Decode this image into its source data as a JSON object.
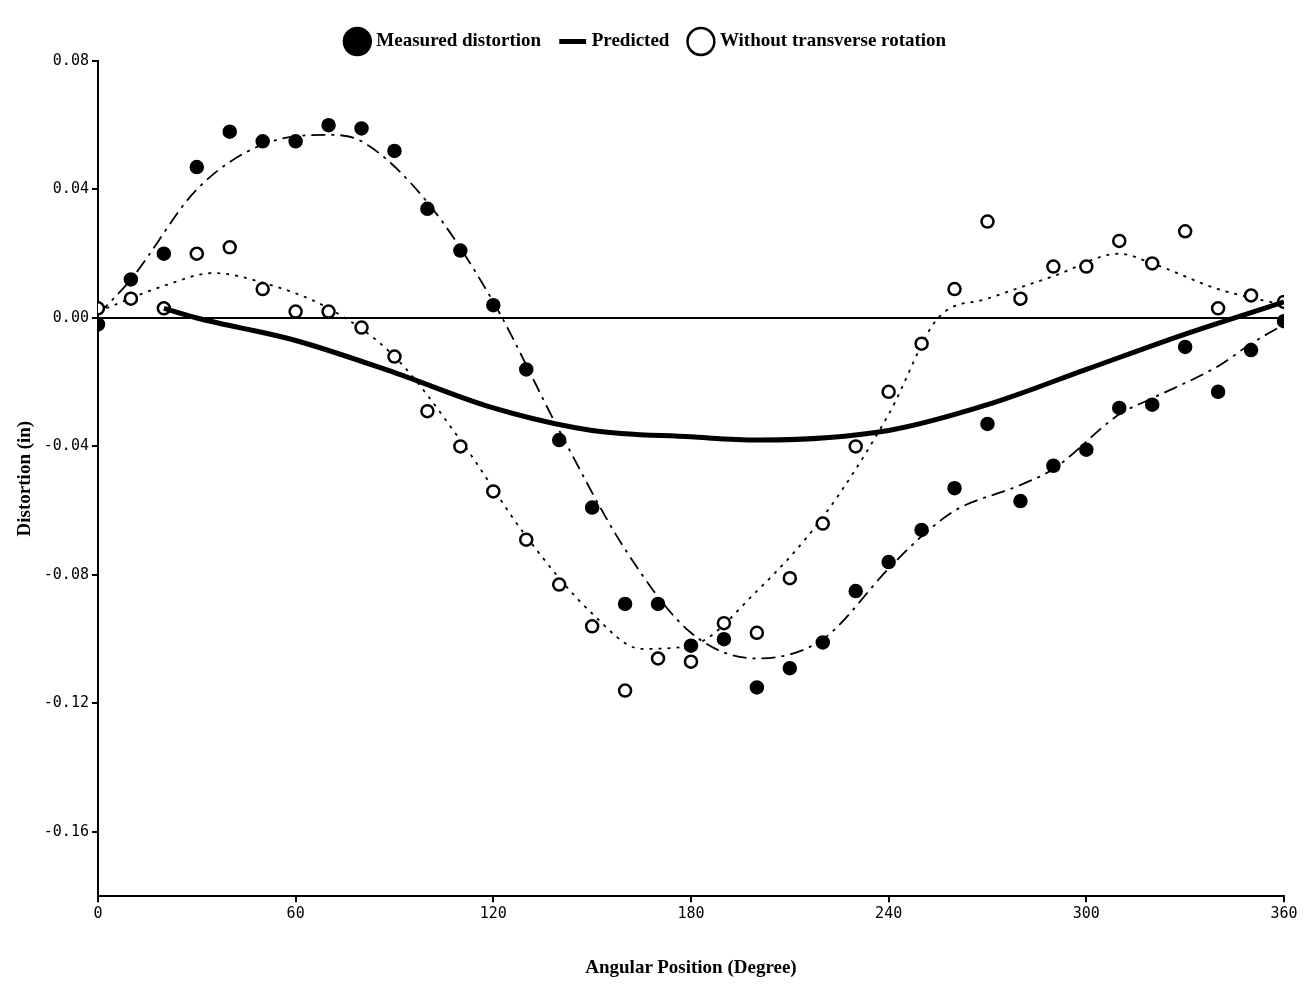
{
  "chart_data": {
    "type": "scatter",
    "xlabel": "Angular Position (Degree)",
    "ylabel": "Distortion (in)",
    "xlim": [
      0,
      360
    ],
    "xticks": [
      0,
      60,
      120,
      180,
      240,
      300,
      360
    ],
    "ylim": [
      -0.18,
      0.08
    ],
    "yticks": [
      -0.16,
      -0.12,
      -0.08,
      -0.04,
      {
        "value": 0,
        "label": "0.00"
      },
      0.04,
      0.08
    ],
    "grid": false,
    "legend": "top",
    "ref_lines": [
      {
        "axis": "y",
        "value": 0,
        "color": "#000000"
      }
    ],
    "series": [
      {
        "name": "Measured distortion",
        "marker": "circle",
        "color": "#000000",
        "x": [
          0,
          10,
          20,
          30,
          40,
          50,
          60,
          70,
          80,
          90,
          100,
          110,
          120,
          130,
          140,
          150,
          160,
          170,
          180,
          190,
          200,
          210,
          220,
          230,
          240,
          250,
          260,
          270,
          280,
          290,
          300,
          310,
          320,
          330,
          340,
          350,
          360
        ],
        "values": [
          -0.002,
          0.012,
          0.02,
          0.047,
          0.058,
          0.055,
          0.055,
          0.06,
          0.059,
          0.052,
          0.034,
          0.021,
          0.004,
          -0.016,
          -0.038,
          -0.059,
          -0.089,
          -0.089,
          -0.102,
          -0.1,
          -0.115,
          -0.109,
          -0.101,
          -0.085,
          -0.076,
          -0.066,
          -0.053,
          -0.033,
          -0.057,
          -0.046,
          -0.041,
          -0.028,
          -0.027,
          -0.009,
          -0.023,
          -0.01,
          -0.001
        ]
      },
      {
        "name": "Predicted",
        "type": "line",
        "marker": "none",
        "color": "#000000",
        "line_style": "solid",
        "x": [
          20,
          30,
          60,
          90,
          120,
          150,
          180,
          200,
          240,
          270,
          300,
          330,
          360
        ],
        "values": [
          0.003,
          0.0,
          -0.007,
          -0.017,
          -0.028,
          -0.035,
          -0.037,
          -0.038,
          -0.035,
          -0.027,
          -0.016,
          -0.005,
          0.005
        ]
      },
      {
        "name": "Without transverse rotation",
        "marker": "circle",
        "color": "#000000",
        "x": [
          0,
          10,
          20,
          30,
          40,
          50,
          60,
          70,
          80,
          90,
          100,
          110,
          120,
          130,
          140,
          150,
          160,
          170,
          180,
          190,
          200,
          210,
          220,
          230,
          240,
          250,
          260,
          270,
          280,
          290,
          300,
          310,
          320,
          330,
          340,
          350,
          360
        ],
        "values": [
          0.003,
          0.006,
          0.003,
          0.02,
          0.022,
          0.009,
          0.002,
          0.002,
          -0.003,
          -0.012,
          -0.029,
          -0.04,
          -0.054,
          -0.069,
          -0.083,
          -0.096,
          -0.116,
          -0.106,
          -0.107,
          -0.095,
          -0.098,
          -0.081,
          -0.064,
          -0.04,
          -0.023,
          -0.008,
          0.009,
          0.03,
          0.006,
          0.016,
          0.016,
          0.024,
          0.017,
          0.027,
          0.003,
          0.007,
          0.005
        ]
      },
      {
        "type": "line",
        "marker": "none",
        "color": "#000000",
        "line_style": "dashed",
        "x": [
          0,
          10,
          30,
          50,
          70,
          80,
          100,
          120,
          140,
          160,
          180,
          200,
          220,
          240,
          250,
          260,
          280,
          290,
          310,
          320,
          340,
          350,
          360
        ],
        "values": [
          0.001,
          0.012,
          0.04,
          0.054,
          0.057,
          0.055,
          0.036,
          0.005,
          -0.035,
          -0.072,
          -0.098,
          -0.106,
          -0.1,
          -0.078,
          -0.068,
          -0.06,
          -0.052,
          -0.047,
          -0.03,
          -0.025,
          -0.015,
          -0.008,
          -0.002
        ]
      },
      {
        "type": "line",
        "marker": "none",
        "color": "#000000",
        "line_style": "dotted",
        "x": [
          0,
          20,
          35,
          50,
          70,
          90,
          110,
          130,
          150,
          165,
          180,
          200,
          220,
          240,
          255,
          270,
          290,
          310,
          320,
          340,
          360
        ],
        "values": [
          0.002,
          0.01,
          0.014,
          0.011,
          0.003,
          -0.012,
          -0.038,
          -0.068,
          -0.092,
          -0.103,
          -0.102,
          -0.085,
          -0.062,
          -0.03,
          0.0,
          0.006,
          0.013,
          0.02,
          0.017,
          0.009,
          0.004
        ]
      }
    ]
  }
}
